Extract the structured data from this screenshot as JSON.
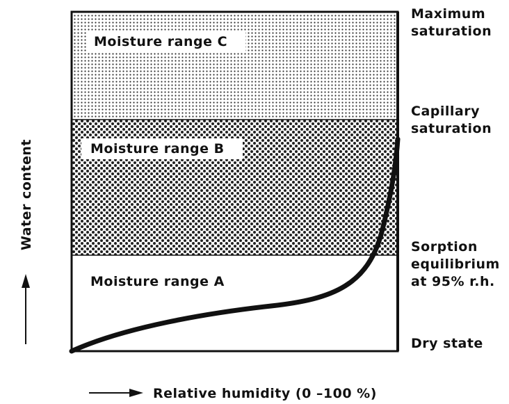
{
  "ranges": [
    {
      "label": "Moisture range C"
    },
    {
      "label": "Moisture range B"
    },
    {
      "label": "Moisture range A"
    }
  ],
  "states": [
    {
      "lines": [
        "Maximum",
        "saturation"
      ]
    },
    {
      "lines": [
        "Capillary",
        "saturation"
      ]
    },
    {
      "lines": [
        "Sorption",
        "equilibrium",
        "at 95% r.h."
      ]
    },
    {
      "lines": [
        "Dry state"
      ]
    }
  ],
  "y_axis_label": "Water content",
  "x_axis_label": "Relative humidity (0 –100 %)"
}
